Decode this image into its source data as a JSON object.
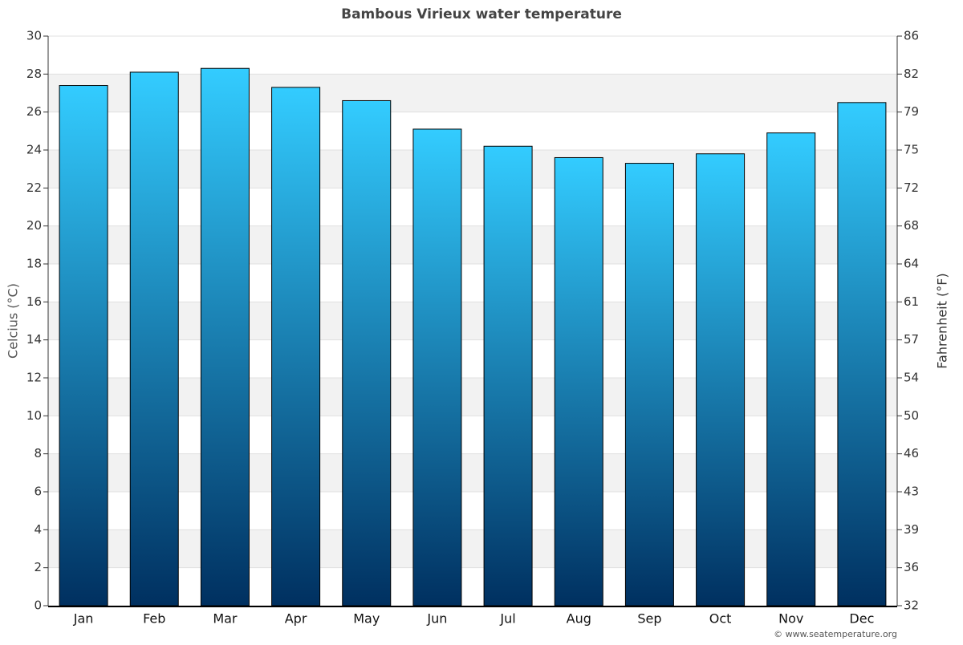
{
  "chart_data": {
    "type": "bar",
    "title": "Bambous Virieux water temperature",
    "categories": [
      "Jan",
      "Feb",
      "Mar",
      "Apr",
      "May",
      "Jun",
      "Jul",
      "Aug",
      "Sep",
      "Oct",
      "Nov",
      "Dec"
    ],
    "values": [
      27.4,
      28.1,
      28.3,
      27.3,
      26.6,
      25.1,
      24.2,
      23.6,
      23.3,
      23.8,
      24.9,
      26.5
    ],
    "color_top": "#33ccff",
    "color_bottom": "#003060",
    "ylabel": "Celcius (°C)",
    "y2label": "Fahrenheit (°F)",
    "ylim": [
      0,
      30
    ],
    "yticks": [
      0,
      2,
      4,
      6,
      8,
      10,
      12,
      14,
      16,
      18,
      20,
      22,
      24,
      26,
      28,
      30
    ],
    "y2lim": [
      32,
      86
    ],
    "y2ticks": [
      32,
      {
        "value": 35.6,
        "label": "36"
      },
      {
        "value": 39.2,
        "label": "39"
      },
      {
        "value": 42.8,
        "label": "43"
      },
      {
        "value": 46.4,
        "label": "46"
      },
      50,
      {
        "value": 53.6,
        "label": "54"
      },
      {
        "value": 57.2,
        "label": "57"
      },
      {
        "value": 60.8,
        "label": "61"
      },
      {
        "value": 64.4,
        "label": "64"
      },
      68,
      {
        "value": 71.6,
        "label": "72"
      },
      {
        "value": 75.2,
        "label": "75"
      },
      {
        "value": 78.8,
        "label": "79"
      },
      {
        "value": 82.4,
        "label": "82"
      },
      86
    ],
    "grid": true,
    "credit": "© www.seatemperature.org"
  }
}
